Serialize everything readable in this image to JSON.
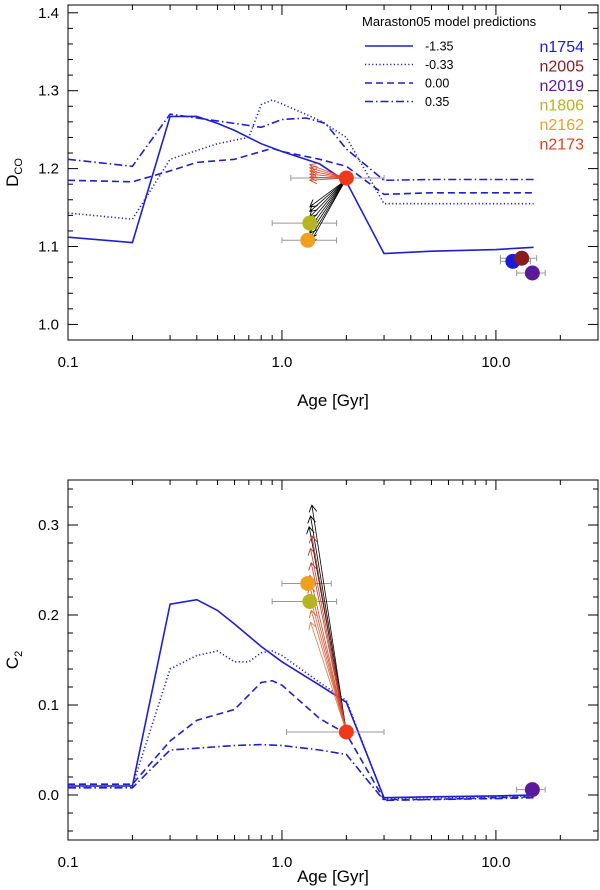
{
  "chart_data": [
    {
      "type": "line",
      "panel": "top",
      "xlabel": "Age [Gyr]",
      "ylabel_main": "D",
      "ylabel_sub": "CO",
      "xscale": "log",
      "xlim": [
        0.1,
        30
      ],
      "ylim": [
        0.98,
        1.41
      ],
      "xticks": [
        0.1,
        1.0,
        10.0
      ],
      "xtick_labels": [
        "0.1",
        "1.0",
        "10.0"
      ],
      "yticks": [
        1.0,
        1.1,
        1.2,
        1.3,
        1.4
      ],
      "ytick_labels": [
        "1.0",
        "1.1",
        "1.2",
        "1.3",
        "1.4"
      ],
      "legend": {
        "title": "Maraston05 model predictions",
        "placement": "top-right",
        "entries": [
          {
            "label": "-1.35",
            "style": "solid"
          },
          {
            "label": "-0.33",
            "style": "dotted"
          },
          {
            "label": "0.00",
            "style": "dashed"
          },
          {
            "label": "0.35",
            "style": "dashdot"
          }
        ]
      },
      "cluster_labels": [
        {
          "label": "n1754",
          "color": "#1a1adc"
        },
        {
          "label": "n2005",
          "color": "#8b1a1a"
        },
        {
          "label": "n2019",
          "color": "#5a1a9a"
        },
        {
          "label": "n1806",
          "color": "#b5b520"
        },
        {
          "label": "n2162",
          "color": "#f0a020"
        },
        {
          "label": "n2173",
          "color": "#ee3a1a"
        }
      ],
      "series": [
        {
          "name": "-1.35",
          "style": "solid",
          "x": [
            0.1,
            0.2,
            0.3,
            0.4,
            0.5,
            0.6,
            0.8,
            1.0,
            1.5,
            2.0,
            3.0,
            5.0,
            10.0,
            15.0
          ],
          "y": [
            1.112,
            1.105,
            1.267,
            1.267,
            1.258,
            1.249,
            1.232,
            1.222,
            1.206,
            1.183,
            1.091,
            1.094,
            1.096,
            1.099
          ]
        },
        {
          "name": "-0.33",
          "style": "dotted",
          "x": [
            0.1,
            0.2,
            0.3,
            0.5,
            0.7,
            0.8,
            0.9,
            1.0,
            1.5,
            2.0,
            3.0,
            5.0,
            10.0,
            15.0
          ],
          "y": [
            1.143,
            1.135,
            1.212,
            1.232,
            1.24,
            1.282,
            1.288,
            1.283,
            1.262,
            1.24,
            1.155,
            1.155,
            1.155,
            1.155
          ]
        },
        {
          "name": "0.00",
          "style": "dashed",
          "x": [
            0.1,
            0.2,
            0.3,
            0.4,
            0.6,
            0.9,
            1.0,
            1.5,
            2.0,
            3.0,
            5.0,
            10.0,
            15.0
          ],
          "y": [
            1.185,
            1.183,
            1.197,
            1.208,
            1.212,
            1.226,
            1.222,
            1.212,
            1.203,
            1.167,
            1.169,
            1.169,
            1.169
          ]
        },
        {
          "name": "0.35",
          "style": "dashdot",
          "x": [
            0.1,
            0.2,
            0.3,
            0.4,
            0.6,
            0.8,
            1.0,
            1.3,
            1.6,
            2.0,
            3.0,
            5.0,
            10.0,
            15.0
          ],
          "y": [
            1.212,
            1.203,
            1.27,
            1.265,
            1.258,
            1.253,
            1.263,
            1.265,
            1.258,
            1.225,
            1.185,
            1.186,
            1.186,
            1.186
          ]
        }
      ],
      "points": [
        {
          "name": "n1754",
          "x": 12.0,
          "y": 1.081,
          "xerr": [
            10.5,
            14.5
          ],
          "color": "#1a1adc"
        },
        {
          "name": "n2005",
          "x": 13.2,
          "y": 1.085,
          "xerr": [
            10.5,
            15.5
          ],
          "color": "#8b1a1a"
        },
        {
          "name": "n2019",
          "x": 14.8,
          "y": 1.066,
          "xerr": [
            12.5,
            17.0
          ],
          "color": "#5a1a9a"
        },
        {
          "name": "n1806",
          "x": 1.35,
          "y": 1.13,
          "xerr": [
            0.9,
            1.8
          ],
          "color": "#b5b520"
        },
        {
          "name": "n2162",
          "x": 1.32,
          "y": 1.108,
          "xerr": [
            1.0,
            1.8
          ],
          "color": "#f0a020"
        },
        {
          "name": "n2173",
          "x": 2.0,
          "y": 1.188,
          "xerr": [
            1.1,
            3.0
          ],
          "color": "#ee3a1a"
        }
      ],
      "arrows": [
        {
          "from": [
            1.98,
            1.185
          ],
          "to": [
            1.35,
            1.151
          ],
          "color": "#000000"
        },
        {
          "from": [
            1.98,
            1.185
          ],
          "to": [
            1.35,
            1.145
          ],
          "color": "#000000"
        },
        {
          "from": [
            1.98,
            1.185
          ],
          "to": [
            1.35,
            1.138
          ],
          "color": "#000000"
        },
        {
          "from": [
            1.98,
            1.185
          ],
          "to": [
            1.35,
            1.131
          ],
          "color": "#000000"
        },
        {
          "from": [
            1.98,
            1.185
          ],
          "to": [
            1.35,
            1.124
          ],
          "color": "#000000"
        },
        {
          "from": [
            1.98,
            1.185
          ],
          "to": [
            1.35,
            1.117
          ],
          "color": "#000000"
        },
        {
          "from": [
            1.98,
            1.185
          ],
          "to": [
            1.35,
            1.11
          ],
          "color": "#000000"
        },
        {
          "from": [
            1.98,
            1.185
          ],
          "to": [
            1.35,
            1.104
          ],
          "color": "#000000"
        },
        {
          "from": [
            1.98,
            1.188
          ],
          "to": [
            1.35,
            1.205
          ],
          "color": "#d94a2a"
        },
        {
          "from": [
            1.98,
            1.188
          ],
          "to": [
            1.35,
            1.201
          ],
          "color": "#d94a2a"
        },
        {
          "from": [
            1.98,
            1.188
          ],
          "to": [
            1.35,
            1.197
          ],
          "color": "#d94a2a"
        },
        {
          "from": [
            1.98,
            1.188
          ],
          "to": [
            1.35,
            1.193
          ],
          "color": "#d94a2a"
        },
        {
          "from": [
            1.98,
            1.188
          ],
          "to": [
            1.35,
            1.189
          ],
          "color": "#d94a2a"
        },
        {
          "from": [
            1.98,
            1.188
          ],
          "to": [
            1.35,
            1.185
          ],
          "color": "#d94a2a"
        }
      ]
    },
    {
      "type": "line",
      "panel": "bottom",
      "xlabel": "Age [Gyr]",
      "ylabel_main": "C",
      "ylabel_sub": "2",
      "xscale": "log",
      "xlim": [
        0.1,
        30
      ],
      "ylim": [
        -0.05,
        0.35
      ],
      "xticks": [
        0.1,
        1.0,
        10.0
      ],
      "xtick_labels": [
        "0.1",
        "1.0",
        "10.0"
      ],
      "yticks": [
        0.0,
        0.1,
        0.2,
        0.3
      ],
      "ytick_labels": [
        "0.0",
        "0.1",
        "0.2",
        "0.3"
      ],
      "series": [
        {
          "name": "-1.35",
          "style": "solid",
          "x": [
            0.1,
            0.2,
            0.3,
            0.4,
            0.5,
            0.6,
            0.8,
            1.0,
            1.5,
            2.0,
            3.0,
            5.0,
            10.0,
            15.0
          ],
          "y": [
            0.01,
            0.01,
            0.212,
            0.217,
            0.205,
            0.19,
            0.165,
            0.148,
            0.122,
            0.103,
            -0.003,
            -0.002,
            -0.001,
            0.0
          ]
        },
        {
          "name": "-0.33",
          "style": "dotted",
          "x": [
            0.1,
            0.2,
            0.3,
            0.4,
            0.5,
            0.6,
            0.7,
            0.8,
            0.9,
            1.0,
            1.5,
            2.0,
            3.0,
            5.0,
            10.0,
            15.0
          ],
          "y": [
            0.01,
            0.01,
            0.14,
            0.155,
            0.16,
            0.148,
            0.148,
            0.158,
            0.16,
            0.155,
            0.125,
            0.105,
            -0.004,
            -0.003,
            -0.002,
            -0.001
          ]
        },
        {
          "name": "0.00",
          "style": "dashed",
          "x": [
            0.1,
            0.2,
            0.3,
            0.4,
            0.6,
            0.8,
            0.9,
            1.0,
            1.5,
            2.0,
            3.0,
            5.0,
            10.0,
            15.0
          ],
          "y": [
            0.012,
            0.012,
            0.06,
            0.083,
            0.095,
            0.125,
            0.127,
            0.122,
            0.085,
            0.068,
            -0.005,
            -0.005,
            -0.003,
            -0.002
          ]
        },
        {
          "name": "0.35",
          "style": "dashdot",
          "x": [
            0.1,
            0.2,
            0.3,
            0.4,
            0.6,
            0.8,
            1.0,
            1.5,
            2.0,
            3.0,
            5.0,
            10.0,
            15.0
          ],
          "y": [
            0.008,
            0.008,
            0.05,
            0.052,
            0.055,
            0.056,
            0.055,
            0.05,
            0.045,
            -0.006,
            -0.005,
            -0.004,
            -0.003
          ]
        }
      ],
      "points": [
        {
          "name": "n2019",
          "x": 14.8,
          "y": 0.006,
          "xerr": [
            12.5,
            17.0
          ],
          "color": "#5a1a9a"
        },
        {
          "name": "n1806",
          "x": 1.35,
          "y": 0.215,
          "xerr": [
            0.9,
            1.8
          ],
          "color": "#b5b520"
        },
        {
          "name": "n2162",
          "x": 1.32,
          "y": 0.235,
          "xerr": [
            1.0,
            1.7
          ],
          "color": "#f0a020"
        },
        {
          "name": "n2173",
          "x": 2.0,
          "y": 0.07,
          "xerr": [
            1.05,
            3.0
          ],
          "color": "#ee3a1a"
        }
      ],
      "arrows": [
        {
          "from": [
            2.0,
            0.07
          ],
          "to": [
            1.38,
            0.322
          ],
          "color": "#000000"
        },
        {
          "from": [
            2.0,
            0.07
          ],
          "to": [
            1.36,
            0.31
          ],
          "color": "#000000"
        },
        {
          "from": [
            2.0,
            0.07
          ],
          "to": [
            1.34,
            0.298
          ],
          "color": "#000000"
        },
        {
          "from": [
            2.0,
            0.07
          ],
          "to": [
            1.38,
            0.288
          ],
          "color": "#c0392b"
        },
        {
          "from": [
            2.0,
            0.07
          ],
          "to": [
            1.36,
            0.274
          ],
          "color": "#c0392b"
        },
        {
          "from": [
            2.0,
            0.07
          ],
          "to": [
            1.37,
            0.258
          ],
          "color": "#c0392b"
        },
        {
          "from": [
            2.0,
            0.07
          ],
          "to": [
            1.35,
            0.244
          ],
          "color": "#d94a2a"
        },
        {
          "from": [
            2.0,
            0.07
          ],
          "to": [
            1.35,
            0.232
          ],
          "color": "#d94a2a"
        },
        {
          "from": [
            2.0,
            0.07
          ],
          "to": [
            1.36,
            0.218
          ],
          "color": "#e0623a"
        },
        {
          "from": [
            2.0,
            0.07
          ],
          "to": [
            1.37,
            0.205
          ],
          "color": "#e0623a"
        },
        {
          "from": [
            2.0,
            0.07
          ],
          "to": [
            1.36,
            0.192
          ],
          "color": "#e67a50"
        }
      ]
    }
  ],
  "colors": {
    "model_line": "#1f1fd0",
    "errorbar": "#999999",
    "axis": "#000000"
  }
}
